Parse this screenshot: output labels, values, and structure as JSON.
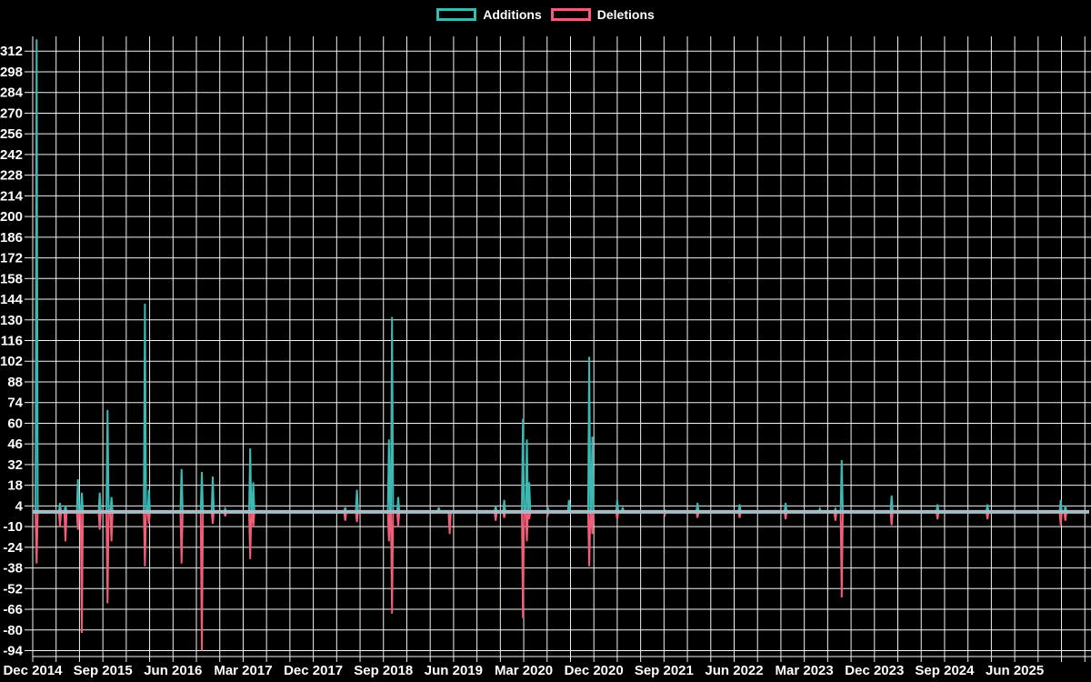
{
  "chart_data": {
    "type": "line",
    "title": "",
    "xlabel": "",
    "ylabel": "",
    "background_color": "#000000",
    "grid_color": "#f2f2f2",
    "axis_text_color": "#ffffff",
    "zero_line_color": "#a9bcc6",
    "legend_position": "top-center",
    "grid": "on",
    "x_unit": "months since Dec 2014",
    "x_grid_step_months": 3,
    "x_label_step_months": 9,
    "x_extent_months": 135,
    "ylim": [
      -98,
      322
    ],
    "y_ticks": [
      312,
      298,
      284,
      270,
      256,
      242,
      228,
      214,
      200,
      186,
      172,
      158,
      144,
      130,
      116,
      102,
      88,
      74,
      60,
      46,
      32,
      18,
      4,
      -10,
      -24,
      -38,
      -52,
      -66,
      -80,
      -94
    ],
    "x_tick_labels": [
      "Dec 2014",
      "Sep 2015",
      "Jun 2016",
      "Mar 2017",
      "Dec 2017",
      "Sep 2018",
      "Jun 2019",
      "Mar 2020",
      "Dec 2020",
      "Sep 2021",
      "Jun 2022",
      "Mar 2023",
      "Dec 2023",
      "Sep 2024",
      "Jun 2025"
    ],
    "series": [
      {
        "name": "Additions",
        "color": "#3cb9b4",
        "points": [
          [
            0.5,
            320
          ],
          [
            3.5,
            6
          ],
          [
            4.2,
            4
          ],
          [
            5.8,
            22
          ],
          [
            6.3,
            13
          ],
          [
            8.6,
            13
          ],
          [
            9.6,
            69
          ],
          [
            10.1,
            10
          ],
          [
            14.4,
            141
          ],
          [
            14.9,
            15
          ],
          [
            19.1,
            29
          ],
          [
            21.7,
            27
          ],
          [
            23.1,
            24
          ],
          [
            24.7,
            2
          ],
          [
            27.9,
            43
          ],
          [
            28.3,
            20
          ],
          [
            40.1,
            3
          ],
          [
            41.6,
            15
          ],
          [
            45.7,
            49
          ],
          [
            46.1,
            132
          ],
          [
            46.9,
            10
          ],
          [
            52.1,
            3
          ],
          [
            59.4,
            4
          ],
          [
            60.5,
            8
          ],
          [
            62.9,
            63
          ],
          [
            63.4,
            49
          ],
          [
            63.7,
            20
          ],
          [
            66.1,
            3
          ],
          [
            68.8,
            8
          ],
          [
            71.4,
            105
          ],
          [
            71.8,
            51
          ],
          [
            75.0,
            8
          ],
          [
            75.7,
            3
          ],
          [
            81.1,
            1
          ],
          [
            85.3,
            6
          ],
          [
            90.7,
            5
          ],
          [
            96.6,
            6
          ],
          [
            101.0,
            2
          ],
          [
            103.0,
            2
          ],
          [
            103.8,
            35
          ],
          [
            110.2,
            11
          ],
          [
            116.1,
            5
          ],
          [
            122.5,
            5
          ],
          [
            131.9,
            8
          ],
          [
            132.5,
            4
          ]
        ]
      },
      {
        "name": "Deletions",
        "color": "#f25d78",
        "points": [
          [
            0.5,
            -35
          ],
          [
            3.5,
            -10
          ],
          [
            4.2,
            -20
          ],
          [
            5.8,
            -12
          ],
          [
            6.3,
            -82
          ],
          [
            8.6,
            -12
          ],
          [
            9.6,
            -62
          ],
          [
            10.1,
            -20
          ],
          [
            14.4,
            -37
          ],
          [
            14.9,
            -8
          ],
          [
            19.1,
            -35
          ],
          [
            21.7,
            -94
          ],
          [
            23.1,
            -8
          ],
          [
            24.7,
            -3
          ],
          [
            27.9,
            -32
          ],
          [
            28.3,
            -10
          ],
          [
            40.1,
            -6
          ],
          [
            41.6,
            -7
          ],
          [
            45.7,
            -20
          ],
          [
            46.1,
            -69
          ],
          [
            46.9,
            -10
          ],
          [
            53.5,
            -15
          ],
          [
            59.4,
            -6
          ],
          [
            60.5,
            -4
          ],
          [
            62.9,
            -72
          ],
          [
            63.4,
            -20
          ],
          [
            63.7,
            -5
          ],
          [
            66.1,
            -2
          ],
          [
            71.4,
            -37
          ],
          [
            71.8,
            -15
          ],
          [
            75.0,
            -5
          ],
          [
            81.1,
            -2
          ],
          [
            85.3,
            -4
          ],
          [
            90.7,
            -4
          ],
          [
            96.6,
            -5
          ],
          [
            103.0,
            -6
          ],
          [
            103.8,
            -58
          ],
          [
            110.2,
            -9
          ],
          [
            116.1,
            -5
          ],
          [
            122.5,
            -5
          ],
          [
            131.9,
            -9
          ],
          [
            132.5,
            -6
          ]
        ]
      }
    ]
  }
}
